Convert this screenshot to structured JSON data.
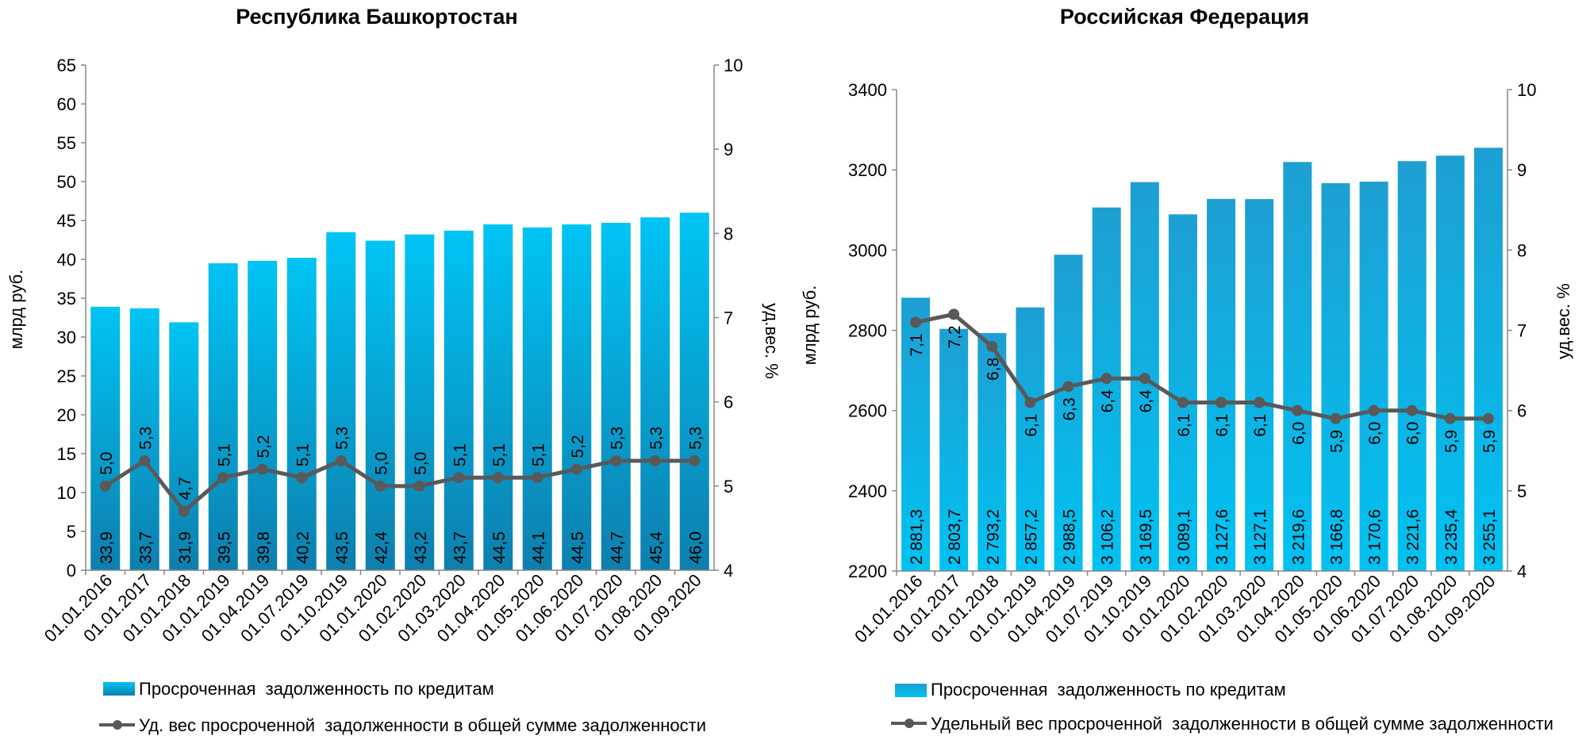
{
  "chart_data": [
    {
      "type": "bar",
      "title": "Республика Башкортостан",
      "ylabel": "млрд руб.",
      "y2label": "уд.вес. %",
      "ylim": [
        0,
        65
      ],
      "yticks": [
        0,
        5,
        10,
        15,
        20,
        25,
        30,
        35,
        40,
        45,
        50,
        55,
        60,
        65
      ],
      "y2lim": [
        4,
        10
      ],
      "y2ticks": [
        4,
        5,
        6,
        7,
        8,
        9,
        10
      ],
      "categories": [
        "01.01.2016",
        "01.01.2017",
        "01.01.2018",
        "01.01.2019",
        "01.04.2019",
        "01.07.2019",
        "01.10.2019",
        "01.01.2020",
        "01.02.2020",
        "01.03.2020",
        "01.04.2020",
        "01.05.2020",
        "01.06.2020",
        "01.07.2020",
        "01.08.2020",
        "01.09.2020"
      ],
      "series": [
        {
          "name": "Просроченная  задолженность по кредитам",
          "kind": "bar",
          "values": [
            33.9,
            33.7,
            31.9,
            39.5,
            39.8,
            40.2,
            43.5,
            42.4,
            43.2,
            43.7,
            44.5,
            44.1,
            44.5,
            44.7,
            45.4,
            46.0
          ],
          "labels": [
            "33,9",
            "33,7",
            "31,9",
            "39,5",
            "39,8",
            "40,2",
            "43,5",
            "42,4",
            "43,2",
            "43,7",
            "44,5",
            "44,1",
            "44,5",
            "44,7",
            "45,4",
            "46,0"
          ]
        },
        {
          "name": "Уд. вес просроченной  задолженности в общей сумме задолженности",
          "kind": "line",
          "axis": "right",
          "values": [
            5.0,
            5.3,
            4.7,
            5.1,
            5.2,
            5.1,
            5.3,
            5.0,
            5.0,
            5.1,
            5.1,
            5.1,
            5.2,
            5.3,
            5.3,
            5.3
          ],
          "labels": [
            "5,0",
            "5,3",
            "4,7",
            "5,1",
            "5,2",
            "5,1",
            "5,3",
            "5,0",
            "5,0",
            "5,1",
            "5,1",
            "5,1",
            "5,2",
            "5,3",
            "5,3",
            "5,3"
          ]
        }
      ],
      "colors": {
        "bar_top": "#00c4f4",
        "bar_bottom": "#0d7fae",
        "line": "#595959",
        "axis": "#888888"
      },
      "legend": "bottom",
      "grid": false
    },
    {
      "type": "bar",
      "title": "Российская Федерация",
      "ylabel": "млрд руб.",
      "y2label": "уд.вес. %",
      "ylim": [
        2200,
        3400
      ],
      "yticks": [
        2200,
        2400,
        2600,
        2800,
        3000,
        3200,
        3400
      ],
      "y2lim": [
        4,
        10
      ],
      "y2ticks": [
        4,
        5,
        6,
        7,
        8,
        9,
        10
      ],
      "categories": [
        "01.01.2016",
        "01.01.2017",
        "01.01.2018",
        "01.01.2019",
        "01.04.2019",
        "01.07.2019",
        "01.10.2019",
        "01.01.2020",
        "01.02.2020",
        "01.03.2020",
        "01.04.2020",
        "01.05.2020",
        "01.06.2020",
        "01.07.2020",
        "01.08.2020",
        "01.09.2020"
      ],
      "series": [
        {
          "name": "Просроченная  задолженность по кредитам",
          "kind": "bar",
          "values": [
            2881.3,
            2803.7,
            2793.2,
            2857.2,
            2988.5,
            3106.2,
            3169.5,
            3089.1,
            3127.6,
            3127.1,
            3219.6,
            3166.8,
            3170.6,
            3221.6,
            3235.4,
            3255.1
          ],
          "labels": [
            "2 881,3",
            "2 803,7",
            "2 793,2",
            "2 857,2",
            "2 988,5",
            "3 106,2",
            "3 169,5",
            "3 089,1",
            "3 127,6",
            "3 127,1",
            "3 219,6",
            "3 166,8",
            "3 170,6",
            "3 221,6",
            "3 235,4",
            "3 255,1"
          ]
        },
        {
          "name": "Удельный вес просроченной  задолженности в общей сумме задолженности",
          "kind": "line",
          "axis": "right",
          "values": [
            7.1,
            7.2,
            6.8,
            6.1,
            6.3,
            6.4,
            6.4,
            6.1,
            6.1,
            6.1,
            6.0,
            5.9,
            6.0,
            6.0,
            5.9,
            5.9
          ],
          "labels": [
            "7,1",
            "7,2",
            "6,8",
            "6,1",
            "6,3",
            "6,4",
            "6,4",
            "6,1",
            "6,1",
            "6,1",
            "6,0",
            "5,9",
            "6,0",
            "6,0",
            "5,9",
            "5,9"
          ]
        }
      ],
      "colors": {
        "bar_top": "#1e9fd2",
        "bar_bottom": "#00c2f2",
        "line": "#595959",
        "axis": "#888888"
      },
      "legend": "bottom",
      "grid": false
    }
  ]
}
